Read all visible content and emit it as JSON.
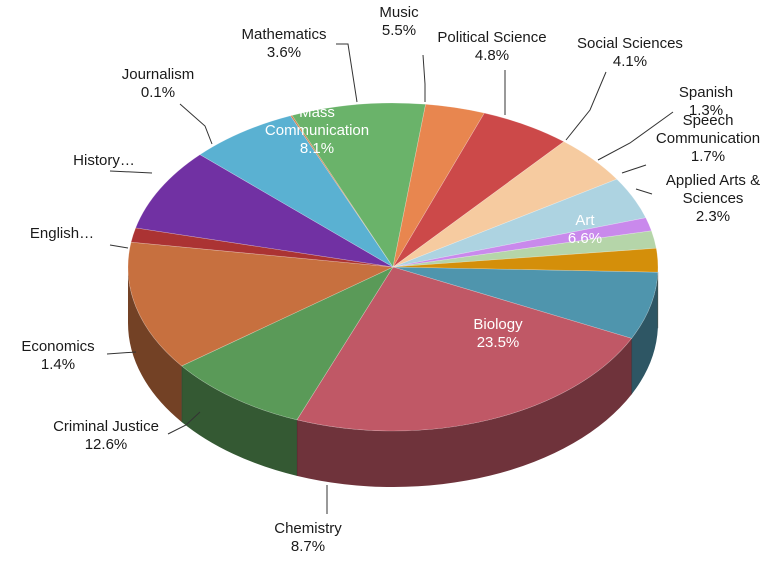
{
  "chart_data": {
    "type": "pie",
    "title": "",
    "style": "3d-exploded-none",
    "slices": [
      {
        "label": "Art",
        "label_lines": [
          "Art"
        ],
        "value": 6.6,
        "value_text": "6.6%",
        "color": "#4f95ad"
      },
      {
        "label": "Biology",
        "label_lines": [
          "Biology"
        ],
        "value": 23.5,
        "value_text": "23.5%",
        "color": "#c05866"
      },
      {
        "label": "Chemistry",
        "label_lines": [
          "Chemistry"
        ],
        "value": 8.7,
        "value_text": "8.7%",
        "color": "#5a9a58"
      },
      {
        "label": "Criminal Justice",
        "label_lines": [
          "Criminal Justice"
        ],
        "value": 12.6,
        "value_text": "12.6%",
        "color": "#c7703f"
      },
      {
        "label": "Economics",
        "label_lines": [
          "Economics"
        ],
        "value": 1.4,
        "value_text": "1.4%",
        "color": "#ab3333"
      },
      {
        "label": "English...",
        "label_lines": [
          "English…"
        ],
        "value": 8.1,
        "value_text": "",
        "color": "#7131a3"
      },
      {
        "label": "History...",
        "label_lines": [
          "History…"
        ],
        "value": 6.6,
        "value_text": "",
        "color": "#5ab1d2"
      },
      {
        "label": "Journalism",
        "label_lines": [
          "Journalism"
        ],
        "value": 0.1,
        "value_text": "0.1%",
        "color": "#d07a45"
      },
      {
        "label": "Mass Communication",
        "label_lines": [
          "Mass",
          "Communication"
        ],
        "value": 8.1,
        "value_text": "8.1%",
        "color": "#6ab36a"
      },
      {
        "label": "Mathematics",
        "label_lines": [
          "Mathematics"
        ],
        "value": 3.6,
        "value_text": "3.6%",
        "color": "#e8864f"
      },
      {
        "label": "Music",
        "label_lines": [
          "Music"
        ],
        "value": 5.5,
        "value_text": "5.5%",
        "color": "#cc4949"
      },
      {
        "label": "Political Science",
        "label_lines": [
          "Political Science"
        ],
        "value": 4.8,
        "value_text": "4.8%",
        "color": "#f6cba0"
      },
      {
        "label": "Social Sciences",
        "label_lines": [
          "Social Sciences"
        ],
        "value": 4.1,
        "value_text": "4.1%",
        "color": "#add3e1"
      },
      {
        "label": "Spanish",
        "label_lines": [
          "Spanish"
        ],
        "value": 1.3,
        "value_text": "1.3%",
        "color": "#c989ec"
      },
      {
        "label": "Speech Communication",
        "label_lines": [
          "Speech",
          "Communication"
        ],
        "value": 1.7,
        "value_text": "1.7%",
        "color": "#b5d5a9"
      },
      {
        "label": "Applied Arts & Sciences",
        "label_lines": [
          "Applied Arts &",
          "Sciences"
        ],
        "value": 2.3,
        "value_text": "2.3%",
        "color": "#d48f0a"
      }
    ],
    "legend": "none",
    "labels": "outside-with-leader-lines"
  }
}
